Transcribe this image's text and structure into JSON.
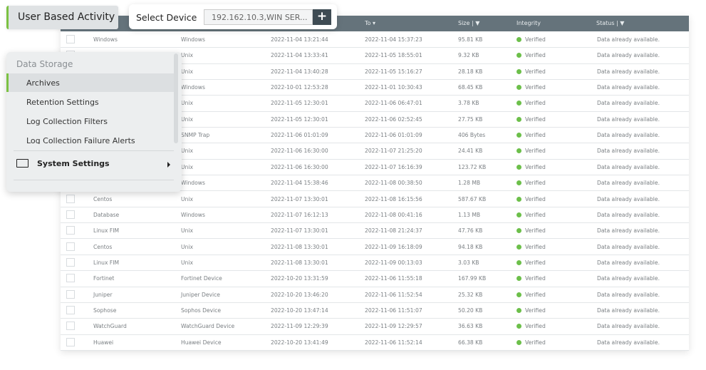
{
  "tab": {
    "label": "User Based Activity"
  },
  "device": {
    "label": "Select Device",
    "value": "192.162.10.3,WIN SER...",
    "add": "+"
  },
  "menu": {
    "heading": "Data Storage",
    "items": [
      {
        "label": "Archives"
      },
      {
        "label": "Retention Settings"
      },
      {
        "label": "Log Collection Filters"
      },
      {
        "label": "Log Collection Failure Alerts"
      }
    ],
    "system": "System Settings"
  },
  "table": {
    "headers": {
      "to": "To ▾",
      "size": "Size  |  ▼",
      "integrity": "Integrity",
      "status": "Status  |  ▼"
    },
    "rows": [
      [
        "Windows",
        "Windows",
        "2022-11-04 13:21:44",
        "2022-11-04 15:37:23",
        "95.81 KB",
        "Verified",
        "Data already available."
      ],
      [
        "",
        "Unix",
        "2022-11-04 13:33:41",
        "2022-11-05 18:55:01",
        "9.32 KB",
        "Verified",
        "Data already available."
      ],
      [
        "",
        "Unix",
        "2022-11-04 13:40:28",
        "2022-11-05 15:16:27",
        "28.18 KB",
        "Verified",
        "Data already available."
      ],
      [
        "",
        "Windows",
        "2022-10-01 12:53:28",
        "2022-11-01 10:30:43",
        "68.45 KB",
        "Verified",
        "Data already available."
      ],
      [
        "",
        "Unix",
        "2022-11-05 12:30:01",
        "2022-11-06 06:47:01",
        "3.78 KB",
        "Verified",
        "Data already available."
      ],
      [
        "",
        "Unix",
        "2022-11-05 12:30:01",
        "2022-11-06 02:52:45",
        "27.75 KB",
        "Verified",
        "Data already available."
      ],
      [
        "",
        "SNMP Trap",
        "2022-11-06 01:01:09",
        "2022-11-06 01:01:09",
        "406 Bytes",
        "Verified",
        "Data already available."
      ],
      [
        "",
        "Unix",
        "2022-11-06 16:30:00",
        "2022-11-07 21:25:20",
        "24.41 KB",
        "Verified",
        "Data already available."
      ],
      [
        "",
        "Unix",
        "2022-11-06 16:30:00",
        "2022-11-07 16:16:39",
        "123.72 KB",
        "Verified",
        "Data already available."
      ],
      [
        "",
        "Windows",
        "2022-11-04 15:38:46",
        "2022-11-08 00:38:50",
        "1.28 MB",
        "Verified",
        "Data already available."
      ],
      [
        "Centos",
        "Unix",
        "2022-11-07 13:30:01",
        "2022-11-08 16:15:56",
        "587.67 KB",
        "Verified",
        "Data already available."
      ],
      [
        "Database",
        "Windows",
        "2022-11-07 16:12:13",
        "2022-11-08 00:41:16",
        "1.13 MB",
        "Verified",
        "Data already available."
      ],
      [
        "Linux FIM",
        "Unix",
        "2022-11-07 13:30:01",
        "2022-11-08 21:24:37",
        "47.76 KB",
        "Verified",
        "Data already available."
      ],
      [
        "Centos",
        "Unix",
        "2022-11-08 13:30:01",
        "2022-11-09 16:18:09",
        "94.18 KB",
        "Verified",
        "Data already available."
      ],
      [
        "Linux FIM",
        "Unix",
        "2022-11-08 13:30:01",
        "2022-11-09 00:13:03",
        "3.03 KB",
        "Verified",
        "Data already available."
      ],
      [
        "Fortinet",
        "Fortinet Device",
        "2022-10-20 13:31:59",
        "2022-11-06 11:55:18",
        "167.99 KB",
        "Verified",
        "Data already available."
      ],
      [
        "Juniper",
        "Juniper Device",
        "2022-10-20 13:46:20",
        "2022-11-06 11:52:54",
        "25.32 KB",
        "Verified",
        "Data already available."
      ],
      [
        "Sophose",
        "Sophos Device",
        "2022-10-20 13:47:14",
        "2022-11-06 11:51:07",
        "50.20 KB",
        "Verified",
        "Data already available."
      ],
      [
        "WatchGuard",
        "WatchGuard Device",
        "2022-11-09 12:29:39",
        "2022-11-09 12:29:57",
        "36.63 KB",
        "Verified",
        "Data already available."
      ],
      [
        "Huawei",
        "Huawei Device",
        "2022-10-20 13:41:49",
        "2022-11-06 11:52:14",
        "66.38 KB",
        "Verified",
        "Data already available."
      ]
    ]
  },
  "colors": {
    "accent": "#7bc142",
    "header": "#65737b",
    "verified": "#6cbf4a"
  }
}
